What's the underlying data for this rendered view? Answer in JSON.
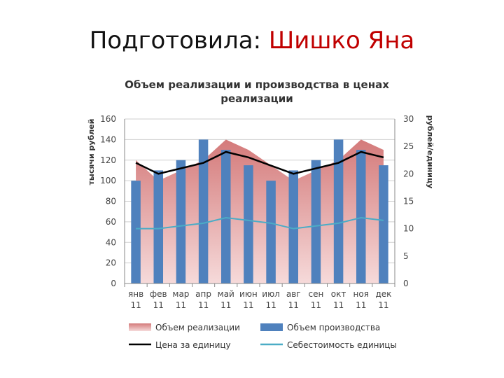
{
  "slide": {
    "title_prefix": "Подготовила: ",
    "title_name": "Шишко Яна",
    "name_color": "#c00000"
  },
  "chart_data": {
    "type": "bar",
    "title_line1": "Объем реализации и производства в ценах",
    "title_line2": "реализации",
    "ylabel": "тысячи рублей",
    "y2label": "рублей/единицу",
    "ylim": [
      0,
      160
    ],
    "y2lim": [
      0,
      30
    ],
    "yticks": [
      0,
      20,
      40,
      60,
      80,
      100,
      120,
      140,
      160
    ],
    "y2ticks": [
      0,
      5,
      10,
      15,
      20,
      25,
      30
    ],
    "categories": [
      [
        "янв",
        "11"
      ],
      [
        "фев",
        "11"
      ],
      [
        "мар",
        "11"
      ],
      [
        "апр",
        "11"
      ],
      [
        "май",
        "11"
      ],
      [
        "июн",
        "11"
      ],
      [
        "июл",
        "11"
      ],
      [
        "авг",
        "11"
      ],
      [
        "сен",
        "11"
      ],
      [
        "окт",
        "11"
      ],
      [
        "ноя",
        "11"
      ],
      [
        "дек",
        "11"
      ]
    ],
    "series": [
      {
        "name": "Объем реализации",
        "kind": "area",
        "axis": "left",
        "color": "#d98a8a",
        "values": [
          120,
          100,
          110,
          120,
          140,
          130,
          115,
          100,
          110,
          120,
          140,
          130
        ]
      },
      {
        "name": "Объем производства",
        "kind": "bar",
        "axis": "left",
        "color": "#4f81bd",
        "values": [
          100,
          110,
          120,
          140,
          130,
          115,
          100,
          110,
          120,
          140,
          130,
          115
        ]
      },
      {
        "name": "Цена за единицу",
        "kind": "line",
        "axis": "right",
        "color": "#000000",
        "values": [
          22,
          20,
          21,
          22,
          24,
          23,
          21.5,
          20,
          21,
          22,
          24,
          23
        ]
      },
      {
        "name": "Себестоимость единицы",
        "kind": "line",
        "axis": "right",
        "color": "#4bacc6",
        "values": [
          10,
          10,
          10.5,
          11,
          12,
          11.5,
          11,
          10,
          10.5,
          11,
          12,
          11.5
        ]
      }
    ],
    "legend_position": "bottom",
    "grid": true
  }
}
